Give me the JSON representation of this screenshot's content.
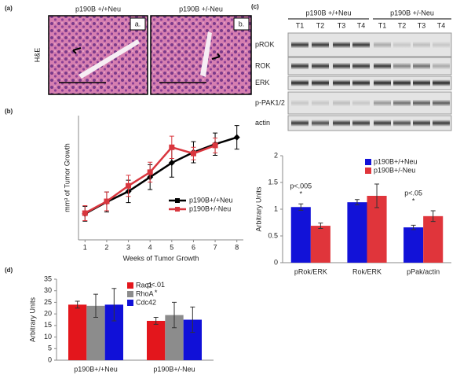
{
  "histology": {
    "panel_label": "(a)",
    "side_label": "H&E",
    "images": [
      {
        "title": "p190B +/+Neu",
        "tag": "a."
      },
      {
        "title": "p190B +/-Neu",
        "tag": "b."
      }
    ]
  },
  "blot": {
    "panel_label": "(c)",
    "groups": [
      "p190B +/+Neu",
      "p190B +/-Neu"
    ],
    "lanes": [
      "T1",
      "T2",
      "T3",
      "T4",
      "T1",
      "T2",
      "T3",
      "T4"
    ],
    "rows": [
      "pROK",
      "ROK",
      "ERK",
      "p-PAK1/2",
      "actin"
    ]
  },
  "chart_data": [
    {
      "type": "line",
      "panel_label": "(b)",
      "y_label": "mm³ of Tumor Growth",
      "x_label": "Weeks of Tumor Growth",
      "xlim": [
        0.7,
        8.3
      ],
      "xticks": [
        1,
        2,
        3,
        4,
        5,
        6,
        7,
        8
      ],
      "ylim": [
        0,
        20
      ],
      "legend": "center-right",
      "series": [
        {
          "name": "p190B+/+Neu",
          "color": "#000000",
          "x": [
            1,
            2,
            3,
            4,
            5,
            6,
            7,
            8
          ],
          "values": [
            4.2,
            6.1,
            7.8,
            10.1,
            12.4,
            14.1,
            15.4,
            16.5
          ],
          "errors": [
            1.2,
            1.6,
            1.8,
            2.0,
            2.3,
            1.7,
            1.8,
            1.9
          ]
        },
        {
          "name": "p190B+/-Neu",
          "color": "#d9363e",
          "x": [
            1,
            2,
            3,
            4,
            5,
            6,
            7
          ],
          "values": [
            4.3,
            6.2,
            8.7,
            10.9,
            14.9,
            13.9,
            15.2
          ],
          "errors": [
            1.2,
            1.5,
            1.7,
            1.6,
            1.8,
            1.0,
            1.2
          ]
        }
      ]
    },
    {
      "type": "bar",
      "y_label": "Arbitrary Units",
      "categories": [
        "pRok/ERK",
        "Rok/ERK",
        "pPak/actin"
      ],
      "ylim": [
        0,
        2
      ],
      "yticks": [
        0,
        0.5,
        1,
        1.5,
        2
      ],
      "legend": "upper-right",
      "series": [
        {
          "name": "p190B+/+Neu",
          "color": "#1212d8",
          "values": [
            1.04,
            1.13,
            0.66
          ],
          "errors": [
            0.06,
            0.05,
            0.04
          ]
        },
        {
          "name": "p190B+/-Neu",
          "color": "#e0353b",
          "values": [
            0.69,
            1.25,
            0.87
          ],
          "errors": [
            0.05,
            0.22,
            0.1
          ]
        }
      ],
      "annotations": [
        {
          "category": 0,
          "p": "p<.005",
          "star": "*"
        },
        {
          "category": 2,
          "p": "p<.05",
          "star": "*"
        }
      ]
    },
    {
      "type": "bar",
      "panel_label": "(d)",
      "y_label": "Arbitrary Units",
      "categories": [
        "p190B+/+Neu",
        "p190B+/-Neu"
      ],
      "ylim": [
        0,
        35
      ],
      "yticks": [
        0,
        5,
        10,
        15,
        20,
        25,
        30,
        35
      ],
      "legend": "upper-right",
      "series": [
        {
          "name": "Rac1",
          "color": "#e3161c",
          "values": [
            24,
            17
          ],
          "errors": [
            1.5,
            1.5
          ]
        },
        {
          "name": "RhoA",
          "color": "#8c8c8c",
          "values": [
            23.5,
            19.5
          ],
          "errors": [
            5,
            5.5
          ]
        },
        {
          "name": "Cdc42",
          "color": "#1010d8",
          "values": [
            24,
            17.5
          ],
          "errors": [
            7,
            5.5
          ]
        }
      ],
      "annotations": [
        {
          "category": 1,
          "p": "p<.01",
          "star": "*"
        }
      ]
    }
  ]
}
